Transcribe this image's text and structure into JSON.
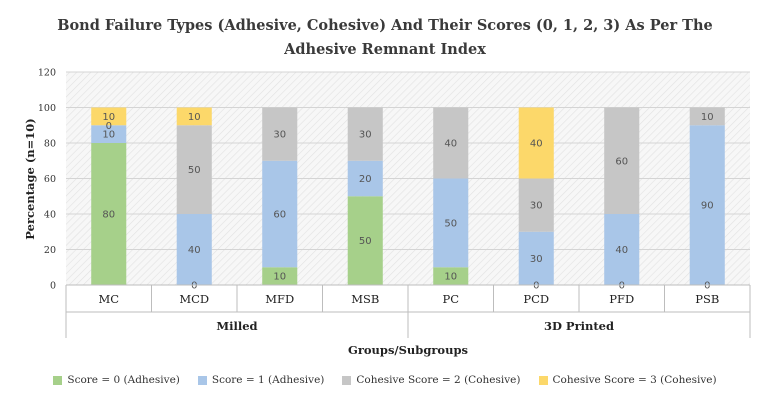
{
  "chart_data": {
    "type": "bar",
    "stacked": true,
    "title_lines": [
      "Bond Failure Types (Adhesive, Cohesive) And Their  Scores (0, 1, 2, 3) As Per The",
      "Adhesive Remnant Index"
    ],
    "xlabel": "Groups/Subgroups",
    "ylabel": "Percentage (n=10)",
    "ylim": [
      0,
      120
    ],
    "yticks": [
      0,
      20,
      40,
      60,
      80,
      100,
      120
    ],
    "categories": [
      "MC",
      "MCD",
      "MFD",
      "MSB",
      "PC",
      "PCD",
      "PFD",
      "PSB"
    ],
    "groups": [
      {
        "label": "Milled",
        "categories": [
          "MC",
          "MCD",
          "MFD",
          "MSB"
        ]
      },
      {
        "label": "3D Printed",
        "categories": [
          "PC",
          "PCD",
          "PFD",
          "PSB"
        ]
      }
    ],
    "series": [
      {
        "name": "Score = 0 (Adhesive)",
        "color": "#a6d08a",
        "values": [
          80,
          0,
          10,
          50,
          10,
          0,
          0,
          0
        ]
      },
      {
        "name": "Score = 1 (Adhesive)",
        "color": "#a9c6e8",
        "values": [
          10,
          40,
          60,
          20,
          50,
          30,
          40,
          90
        ]
      },
      {
        "name": "Cohesive Score = 2 (Cohesive)",
        "color": "#c6c6c6",
        "values": [
          0,
          50,
          30,
          30,
          40,
          30,
          60,
          10
        ]
      },
      {
        "name": "Cohesive Score = 3 (Cohesive)",
        "color": "#fcd86a",
        "values": [
          10,
          10,
          0,
          0,
          0,
          40,
          0,
          0
        ]
      }
    ],
    "grid": true,
    "legend_position": "bottom"
  }
}
